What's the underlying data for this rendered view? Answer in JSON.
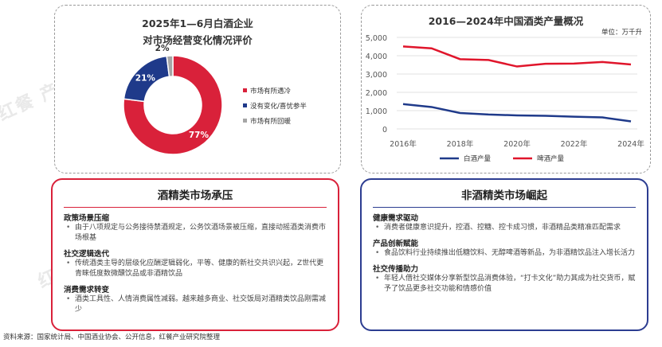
{
  "watermark": "红餐 产业研究院",
  "chart_data": [
    {
      "type": "pie",
      "title_line1": "2025年1—6月白酒企业",
      "title_line2": "对市场经营变化情况评价",
      "slices": [
        {
          "label": "市场有所遇冷",
          "value": 77,
          "display": "77%",
          "color": "#d9213a"
        },
        {
          "label": "没有变化/喜忧参半",
          "value": 21,
          "display": "21%",
          "color": "#1f3a8a"
        },
        {
          "label": "市场有所回暖",
          "value": 2,
          "display": "2%",
          "color": "#a6a6a6"
        }
      ],
      "legend_position": "right"
    },
    {
      "type": "line",
      "title": "2016—2024年中国酒类产量概况",
      "unit": "单位：万千升",
      "x": [
        2016,
        2017,
        2018,
        2019,
        2020,
        2021,
        2022,
        2023,
        2024
      ],
      "x_ticks": [
        "2016年",
        "2018年",
        "2020年",
        "2022年",
        "2024年"
      ],
      "x_tick_values": [
        2016,
        2018,
        2020,
        2022,
        2024
      ],
      "y_ticks": [
        "0",
        "1,000",
        "2,000",
        "3,000",
        "4,000",
        "5,000"
      ],
      "ylim": [
        0,
        5000
      ],
      "series": [
        {
          "name": "白酒产量",
          "color": "#1f3a8a",
          "values": [
            1358,
            1198,
            871,
            786,
            741,
            716,
            671,
            629,
            415
          ]
        },
        {
          "name": "啤酒产量",
          "color": "#e0152b",
          "values": [
            4506,
            4402,
            3812,
            3765,
            3411,
            3562,
            3569,
            3656,
            3521
          ]
        }
      ],
      "grid": true,
      "legend_position": "bottom"
    }
  ],
  "left_panel": {
    "title": "酒精类市场承压",
    "sections": [
      {
        "head": "政策场景压缩",
        "body": "由于八项规定与公务接待禁酒规定，公务饮酒场景被压缩，直接动摇酒类消费市场根基"
      },
      {
        "head": "社交逻辑迭代",
        "body": "传统酒类主导的层级化应酬逻辑弱化，平等、健康的新社交共识兴起，Z世代更青睐低度数微醺饮品或非酒精饮品"
      },
      {
        "head": "消费需求转变",
        "body": "酒类工具性、人情消费属性减弱。越来越多商业、社交饭局对酒精类饮品刚需减少"
      }
    ]
  },
  "right_panel": {
    "title": "非酒精类市场崛起",
    "sections": [
      {
        "head": "健康需求驱动",
        "body": "消费者健康意识提升，控酒、控糖、控卡成习惯，非酒精品类精准匹配需求"
      },
      {
        "head": "产品创新赋能",
        "body": "食品饮料行业持续推出低糖饮料、无醇啤酒等新品，为非酒精饮品注入增长活力"
      },
      {
        "head": "社交传播助力",
        "body": "年轻人借社交媒体分享新型饮品消费体验，“打卡文化”助力其成为社交货币，赋予了饮品更多社交功能和情感价值"
      }
    ]
  },
  "source": "资料来源：国家统计局、中国酒业协会、公开信息，红餐产业研究院整理"
}
